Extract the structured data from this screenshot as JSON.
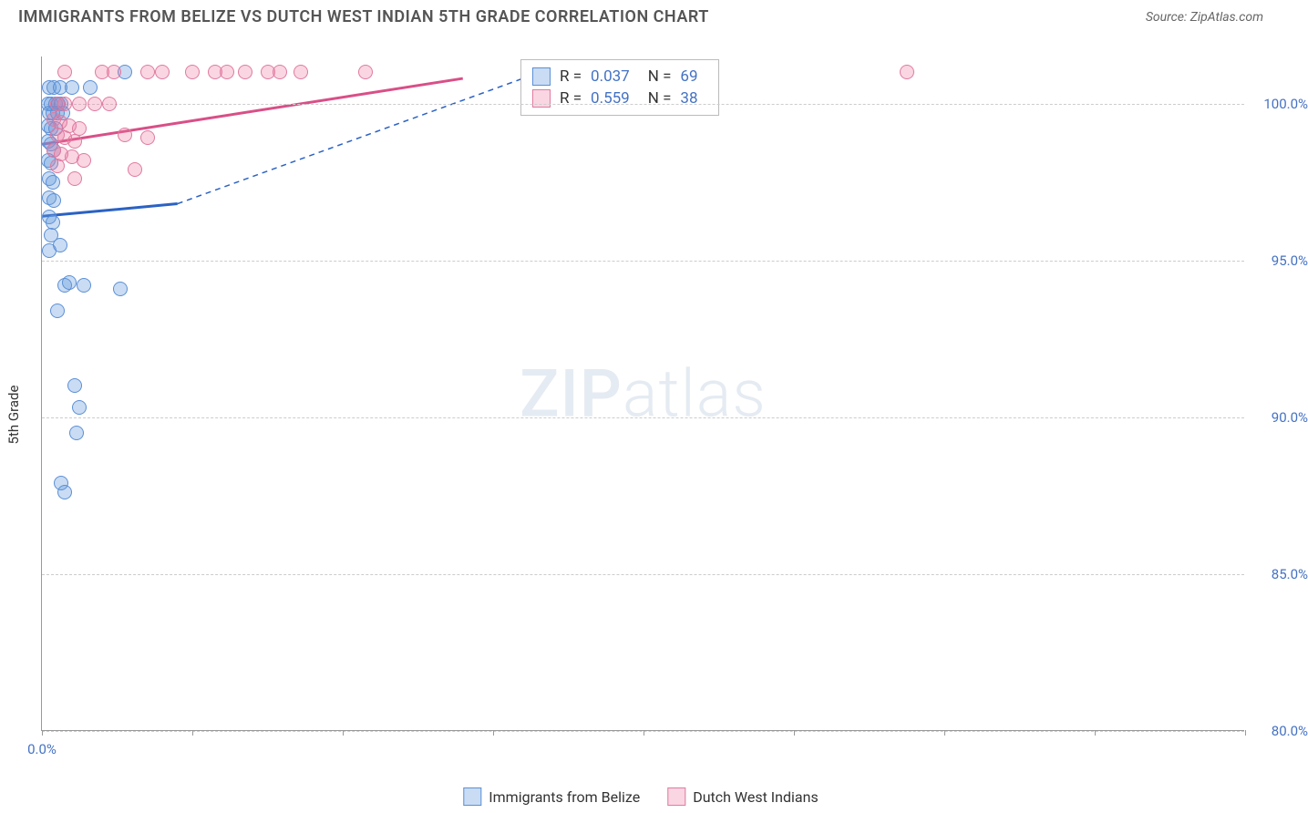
{
  "title": "IMMIGRANTS FROM BELIZE VS DUTCH WEST INDIAN 5TH GRADE CORRELATION CHART",
  "source": "Source: ZipAtlas.com",
  "y_axis_label": "5th Grade",
  "watermark_bold": "ZIP",
  "watermark_thin": "atlas",
  "chart": {
    "type": "scatter",
    "xlim": [
      0,
      80
    ],
    "ylim": [
      80,
      101.5
    ],
    "y_ticks": [
      {
        "val": 100,
        "label": "100.0%"
      },
      {
        "val": 95,
        "label": "95.0%"
      },
      {
        "val": 90,
        "label": "90.0%"
      },
      {
        "val": 85,
        "label": "85.0%"
      },
      {
        "val": 80,
        "label": "80.0%"
      }
    ],
    "x_ticks": [
      0,
      10,
      20,
      30,
      40,
      50,
      60,
      70,
      80
    ],
    "x_labels": [
      {
        "val": 0,
        "label": "0.0%"
      }
    ],
    "grid_color": "#cccccc",
    "axis_color": "#999999",
    "background": "#ffffff",
    "series": [
      {
        "name": "Immigrants from Belize",
        "color_fill": "rgba(100,155,220,0.35)",
        "color_stroke": "#5b8fd6",
        "marker_radius": 8,
        "trend": {
          "x1": 0,
          "y1": 96.4,
          "x2": 9,
          "y2": 96.8,
          "solid": true
        },
        "trend_ext": {
          "x1": 9,
          "y1": 96.8,
          "x2": 32,
          "y2": 100.8
        },
        "trend_color": "#2b62c4",
        "stats": {
          "R": "0.037",
          "N": "69"
        },
        "points": [
          [
            0.5,
            100.5
          ],
          [
            0.8,
            100.5
          ],
          [
            1.2,
            100.5
          ],
          [
            2.0,
            100.5
          ],
          [
            3.2,
            100.5
          ],
          [
            5.5,
            101.0
          ],
          [
            0.4,
            100.0
          ],
          [
            0.6,
            100.0
          ],
          [
            0.9,
            100.0
          ],
          [
            1.1,
            100.0
          ],
          [
            1.3,
            100.0
          ],
          [
            0.5,
            99.7
          ],
          [
            0.7,
            99.7
          ],
          [
            1.0,
            99.7
          ],
          [
            1.4,
            99.7
          ],
          [
            0.4,
            99.3
          ],
          [
            0.6,
            99.2
          ],
          [
            0.9,
            99.2
          ],
          [
            0.4,
            98.8
          ],
          [
            0.6,
            98.7
          ],
          [
            0.8,
            98.5
          ],
          [
            0.4,
            98.2
          ],
          [
            0.6,
            98.1
          ],
          [
            0.5,
            97.6
          ],
          [
            0.7,
            97.5
          ],
          [
            0.5,
            97.0
          ],
          [
            0.8,
            96.9
          ],
          [
            0.5,
            96.4
          ],
          [
            0.7,
            96.2
          ],
          [
            0.6,
            95.8
          ],
          [
            1.2,
            95.5
          ],
          [
            0.5,
            95.3
          ],
          [
            1.5,
            94.2
          ],
          [
            1.8,
            94.3
          ],
          [
            2.8,
            94.2
          ],
          [
            5.2,
            94.1
          ],
          [
            1.0,
            93.4
          ],
          [
            2.2,
            91.0
          ],
          [
            2.5,
            90.3
          ],
          [
            2.3,
            89.5
          ],
          [
            1.3,
            87.9
          ],
          [
            1.5,
            87.6
          ]
        ]
      },
      {
        "name": "Dutch West Indians",
        "color_fill": "rgba(235,120,160,0.30)",
        "color_stroke": "#e07aa0",
        "marker_radius": 8,
        "trend": {
          "x1": 0,
          "y1": 98.7,
          "x2": 28,
          "y2": 100.8,
          "solid": true
        },
        "trend_color": "#d94f87",
        "stats": {
          "R": "0.559",
          "N": "38"
        },
        "points": [
          [
            1.5,
            101.0
          ],
          [
            4.0,
            101.0
          ],
          [
            4.8,
            101.0
          ],
          [
            7.0,
            101.0
          ],
          [
            8.0,
            101.0
          ],
          [
            10.0,
            101.0
          ],
          [
            11.5,
            101.0
          ],
          [
            12.3,
            101.0
          ],
          [
            13.5,
            101.0
          ],
          [
            15.0,
            101.0
          ],
          [
            15.8,
            101.0
          ],
          [
            17.2,
            101.0
          ],
          [
            21.5,
            101.0
          ],
          [
            57.5,
            101.0
          ],
          [
            1.0,
            100.0
          ],
          [
            1.5,
            100.0
          ],
          [
            2.5,
            100.0
          ],
          [
            3.5,
            100.0
          ],
          [
            4.5,
            100.0
          ],
          [
            0.8,
            99.5
          ],
          [
            1.2,
            99.4
          ],
          [
            1.8,
            99.3
          ],
          [
            2.5,
            99.2
          ],
          [
            1.0,
            99.0
          ],
          [
            1.5,
            98.9
          ],
          [
            2.2,
            98.8
          ],
          [
            5.5,
            99.0
          ],
          [
            7.0,
            98.9
          ],
          [
            0.8,
            98.5
          ],
          [
            1.3,
            98.4
          ],
          [
            2.0,
            98.3
          ],
          [
            2.8,
            98.2
          ],
          [
            1.0,
            98.0
          ],
          [
            2.2,
            97.6
          ],
          [
            6.2,
            97.9
          ]
        ]
      }
    ]
  },
  "legend": [
    {
      "label": "Immigrants from Belize",
      "fill": "rgba(100,155,220,0.35)",
      "stroke": "#5b8fd6"
    },
    {
      "label": "Dutch West Indians",
      "fill": "rgba(235,120,160,0.30)",
      "stroke": "#e07aa0"
    }
  ],
  "stats_box": {
    "rows": [
      {
        "fill": "rgba(100,155,220,0.35)",
        "stroke": "#5b8fd6",
        "R_label": "R =",
        "R": "0.037",
        "N_label": "N =",
        "N": "69"
      },
      {
        "fill": "rgba(235,120,160,0.30)",
        "stroke": "#e07aa0",
        "R_label": "R =",
        "R": "0.559",
        "N_label": "N =",
        "N": "38"
      }
    ]
  }
}
